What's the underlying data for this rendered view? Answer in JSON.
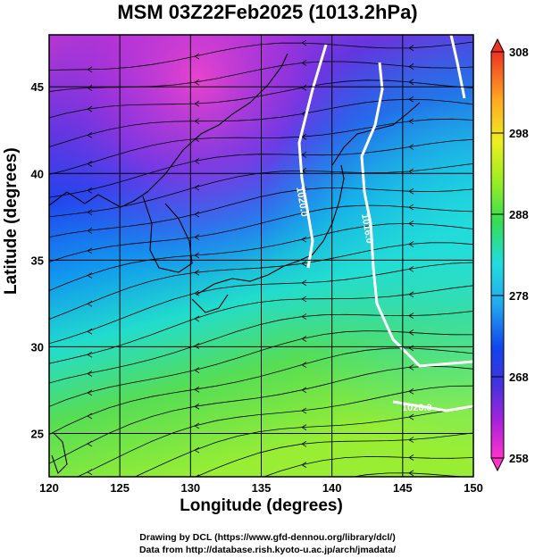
{
  "title": "MSM 03Z22Feb2025 (1013.2hPa)",
  "map": {
    "xlabel": "Longitude (degrees)",
    "ylabel": "Latitude  (degrees)",
    "lon_range": [
      120,
      150
    ],
    "lat_range": [
      22.5,
      48
    ],
    "lon_ticks": [
      "120",
      "125",
      "130",
      "135",
      "140",
      "145",
      "150"
    ],
    "lat_ticks": [
      "25",
      "30",
      "35",
      "40",
      "45"
    ],
    "grid": true,
    "isobars": [
      {
        "label": "1020.0",
        "color": "#ffffff"
      },
      {
        "label": "1016.0",
        "color": "#ffffff"
      },
      {
        "label": "1020.0",
        "color": "#ffffff"
      }
    ],
    "streamline_color": "#000000",
    "coastline_color": "#000000"
  },
  "colorbar": {
    "min": 258,
    "max": 308,
    "tick_labels": [
      "308",
      "298",
      "288",
      "278",
      "268",
      "258"
    ],
    "colors": [
      "#ff33cc",
      "#aa22dd",
      "#4433dd",
      "#1144ee",
      "#22aaee",
      "#22dddd",
      "#33dd55",
      "#99ee22",
      "#eeee22",
      "#ffaa22",
      "#ff4422",
      "#ee3322"
    ],
    "extend_both": true
  },
  "credits": {
    "line1": "Drawing by DCL (https://www.gfd-dennou.org/library/dcl/)",
    "line2": "Data from http://database.rish.kyoto-u.ac.jp/arch/jmadata/"
  }
}
